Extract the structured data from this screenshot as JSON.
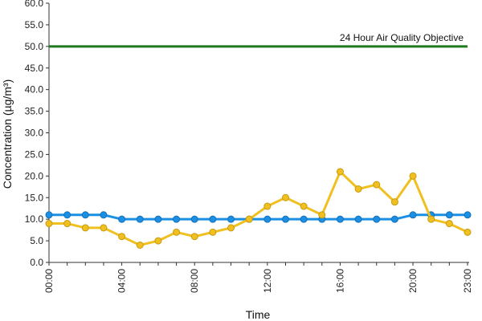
{
  "chart_data": {
    "type": "line",
    "xlabel": "Time",
    "ylabel": "Concentration (µg/m³)",
    "ylim": [
      0,
      60
    ],
    "y_ticks": [
      "0.0",
      "5.0",
      "10.0",
      "15.0",
      "20.0",
      "25.0",
      "30.0",
      "35.0",
      "40.0",
      "45.0",
      "50.0",
      "55.0",
      "60.0"
    ],
    "x_ticks": [
      "00:00",
      "04:00",
      "08:00",
      "12:00",
      "16:00",
      "20:00",
      "23:00"
    ],
    "x_tick_hours": [
      0,
      4,
      8,
      12,
      16,
      20,
      23
    ],
    "grid": false,
    "series": [
      {
        "color": "#1a8fe3",
        "x": [
          0,
          1,
          2,
          3,
          4,
          5,
          6,
          7,
          8,
          9,
          10,
          11,
          12,
          13,
          14,
          15,
          16,
          17,
          18,
          19,
          20,
          21,
          22,
          23
        ],
        "values": [
          11,
          11,
          11,
          11,
          10,
          10,
          10,
          10,
          10,
          10,
          10,
          10,
          10,
          10,
          10,
          10,
          10,
          10,
          10,
          10,
          11,
          11,
          11,
          11
        ]
      },
      {
        "color": "#f0c020",
        "x": [
          0,
          1,
          2,
          3,
          4,
          5,
          6,
          7,
          8,
          9,
          10,
          11,
          12,
          13,
          14,
          15,
          16,
          17,
          18,
          19,
          20,
          21,
          22,
          23
        ],
        "values": [
          9,
          9,
          8,
          8,
          6,
          4,
          5,
          7,
          6,
          7,
          8,
          10,
          13,
          15,
          13,
          11,
          21,
          17,
          18,
          14,
          20,
          10,
          9,
          7
        ]
      }
    ],
    "reference_line": {
      "value": 50,
      "label": "24 Hour Air Quality Objective",
      "color": "#1f7a1f"
    }
  }
}
